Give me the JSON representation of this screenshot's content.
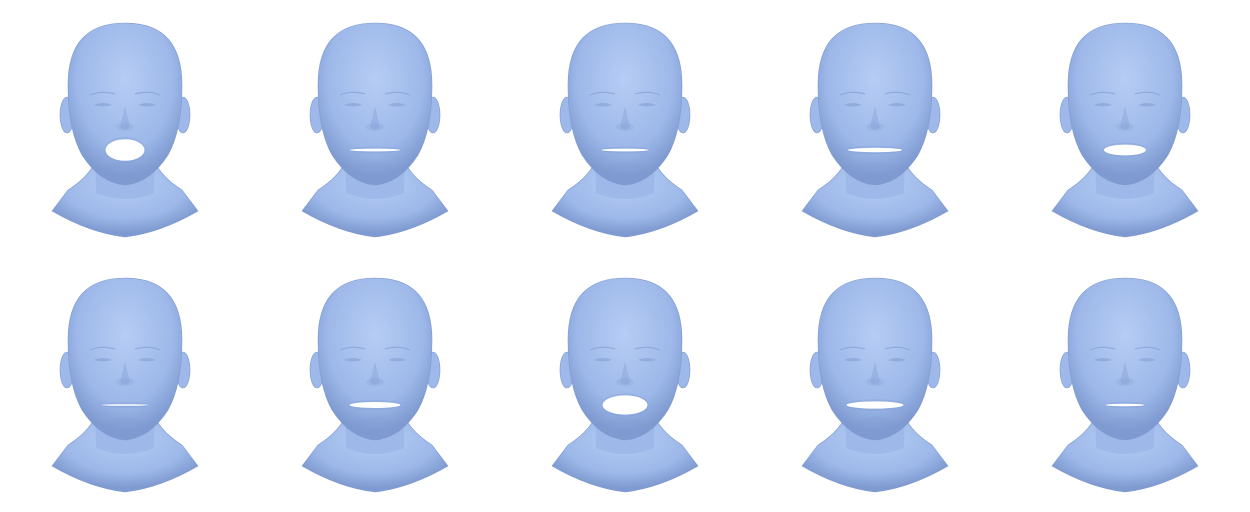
{
  "colors": {
    "skin": "#9db8e9",
    "skin_dark": "#7f9ad0",
    "skin_light": "#b6cdf4",
    "mouth_open": "#ffffff",
    "background": "#ffffff"
  },
  "faces": [
    {
      "mouth_openness": 0.9,
      "mouth_width": 0.35
    },
    {
      "mouth_openness": 0.12,
      "mouth_width": 0.55
    },
    {
      "mouth_openness": 0.12,
      "mouth_width": 0.5
    },
    {
      "mouth_openness": 0.18,
      "mouth_width": 0.6
    },
    {
      "mouth_openness": 0.45,
      "mouth_width": 0.4
    },
    {
      "mouth_openness": 0.0,
      "mouth_width": 0.5
    },
    {
      "mouth_openness": 0.25,
      "mouth_width": 0.55
    },
    {
      "mouth_openness": 0.8,
      "mouth_width": 0.45
    },
    {
      "mouth_openness": 0.3,
      "mouth_width": 0.65
    },
    {
      "mouth_openness": 0.1,
      "mouth_width": 0.35
    }
  ]
}
